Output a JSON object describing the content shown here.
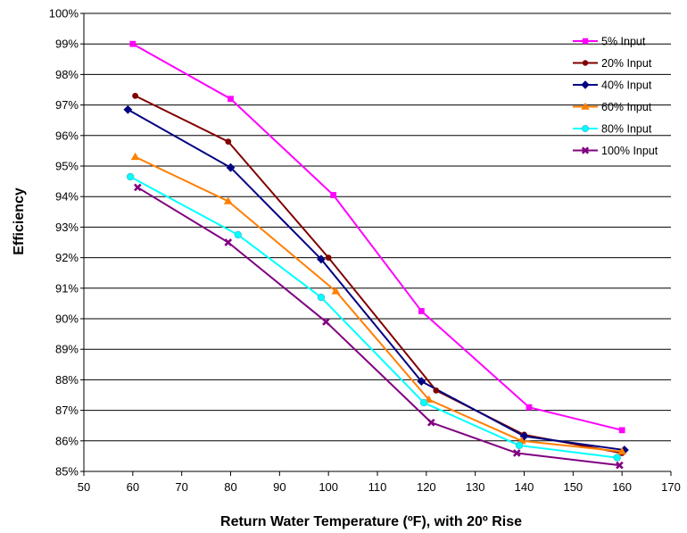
{
  "chart_data": {
    "type": "line",
    "title": "",
    "xlabel": "Return Water Temperature (ºF), with 20º Rise",
    "ylabel": "Efficiency",
    "xlim": [
      50,
      170
    ],
    "ylim": [
      85,
      100
    ],
    "x_ticks": [
      "50",
      "60",
      "70",
      "80",
      "90",
      "100",
      "110",
      "120",
      "130",
      "140",
      "150",
      "160",
      "170"
    ],
    "y_ticks": [
      "85%",
      "86%",
      "87%",
      "88%",
      "89%",
      "90%",
      "91%",
      "92%",
      "93%",
      "94%",
      "95%",
      "96%",
      "97%",
      "98%",
      "99%",
      "100%"
    ],
    "grid": "horizontal",
    "legend_position": "top-right",
    "series": [
      {
        "name": "5% Input",
        "color": "#ff00ff",
        "marker": "square",
        "x": [
          60,
          80,
          101,
          119,
          141,
          160
        ],
        "y": [
          99.0,
          97.2,
          94.05,
          90.25,
          87.1,
          86.35
        ]
      },
      {
        "name": "20% Input",
        "color": "#800000",
        "marker": "circle",
        "x": [
          60.5,
          79.5,
          100,
          122,
          140,
          160
        ],
        "y": [
          97.3,
          95.8,
          92.0,
          87.65,
          86.2,
          85.6
        ]
      },
      {
        "name": "40% Input",
        "color": "#000080",
        "marker": "diamond",
        "x": [
          59,
          80,
          98.5,
          119,
          140,
          160.5
        ],
        "y": [
          96.85,
          94.95,
          91.95,
          87.95,
          86.15,
          85.7
        ]
      },
      {
        "name": "60% Input",
        "color": "#ff7f00",
        "marker": "triangle",
        "x": [
          60.5,
          79.5,
          101.5,
          120.5,
          139.5,
          160
        ],
        "y": [
          95.3,
          93.85,
          90.9,
          87.35,
          86.0,
          85.65
        ]
      },
      {
        "name": "80% Input",
        "color": "#00ffff",
        "marker": "circle-open",
        "x": [
          59.5,
          81.5,
          98.5,
          119.5,
          139,
          159
        ],
        "y": [
          94.65,
          92.75,
          90.7,
          87.25,
          85.85,
          85.45
        ]
      },
      {
        "name": "100% Input",
        "color": "#800080",
        "marker": "x",
        "x": [
          61,
          79.5,
          99.5,
          121,
          138.5,
          159.5
        ],
        "y": [
          94.3,
          92.5,
          89.9,
          86.6,
          85.6,
          85.2
        ]
      }
    ]
  }
}
